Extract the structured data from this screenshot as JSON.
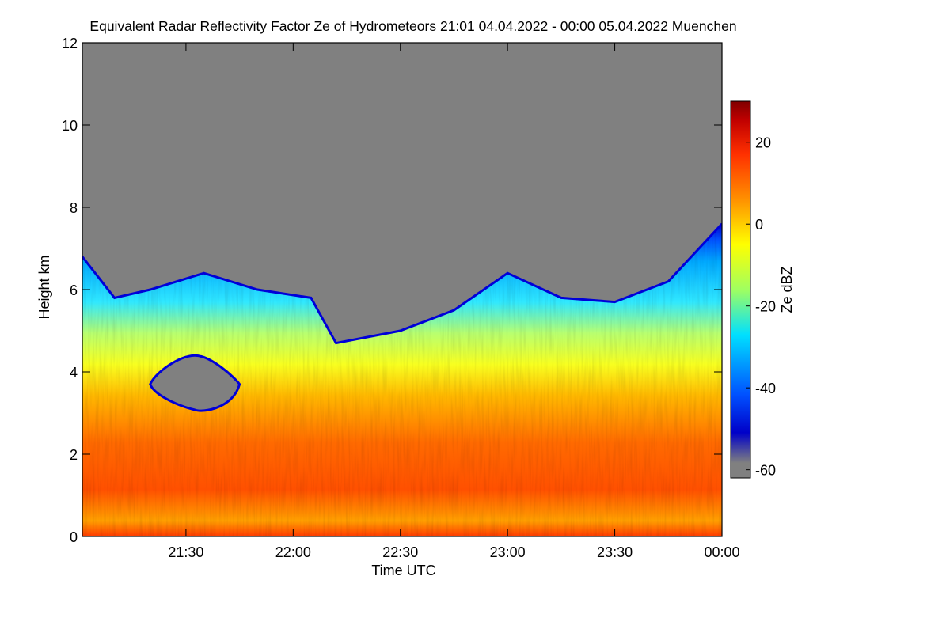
{
  "chart_data": {
    "type": "heatmap",
    "title": "Equivalent Radar Reflectivity Factor Ze of Hydrometeors   21:01 04.04.2022 - 00:00 05.04.2022 Muenchen",
    "xlabel": "Time UTC",
    "ylabel": "Height km",
    "x_ticks": [
      "21:30",
      "22:00",
      "22:30",
      "23:00",
      "23:30",
      "00:00"
    ],
    "y_ticks": [
      "0",
      "2",
      "4",
      "6",
      "8",
      "10",
      "12"
    ],
    "xlim": [
      "21:01",
      "00:00"
    ],
    "ylim": [
      0,
      12
    ],
    "background_color": "#808080",
    "colorbar": {
      "label": "Ze dBZ",
      "ticks": [
        "20",
        "0",
        "-20",
        "-40",
        "-60"
      ],
      "range": [
        -62,
        30
      ],
      "colormap": [
        "#808080",
        "#0000c8",
        "#0050ff",
        "#00e0ff",
        "#a0ff60",
        "#ffff00",
        "#ff9000",
        "#ff3000",
        "#c00000",
        "#800000"
      ]
    },
    "echo_layer": {
      "cloud_top_km": [
        {
          "t": "21:01",
          "h": 6.8
        },
        {
          "t": "21:10",
          "h": 5.8
        },
        {
          "t": "21:20",
          "h": 6.0
        },
        {
          "t": "21:35",
          "h": 6.4
        },
        {
          "t": "21:50",
          "h": 6.0
        },
        {
          "t": "22:05",
          "h": 5.8
        },
        {
          "t": "22:12",
          "h": 4.7
        },
        {
          "t": "22:30",
          "h": 5.0
        },
        {
          "t": "22:45",
          "h": 5.5
        },
        {
          "t": "23:00",
          "h": 6.4
        },
        {
          "t": "23:15",
          "h": 5.8
        },
        {
          "t": "23:30",
          "h": 5.7
        },
        {
          "t": "23:45",
          "h": 6.2
        },
        {
          "t": "00:00",
          "h": 7.6
        }
      ],
      "embedded_gap": {
        "t_start": "21:20",
        "t_end": "21:45",
        "h_bottom": 3.0,
        "h_top": 4.4
      },
      "ze_by_height": [
        {
          "h_km": 0.1,
          "ze_dbz": 18
        },
        {
          "h_km": 1.0,
          "ze_dbz": 12
        },
        {
          "h_km": 2.0,
          "ze_dbz": 10
        },
        {
          "h_km": 3.0,
          "ze_dbz": 2
        },
        {
          "h_km": 4.0,
          "ze_dbz": -10
        },
        {
          "h_km": 5.0,
          "ze_dbz": -22
        },
        {
          "h_km": 6.0,
          "ze_dbz": -40
        }
      ]
    },
    "grid": false
  }
}
